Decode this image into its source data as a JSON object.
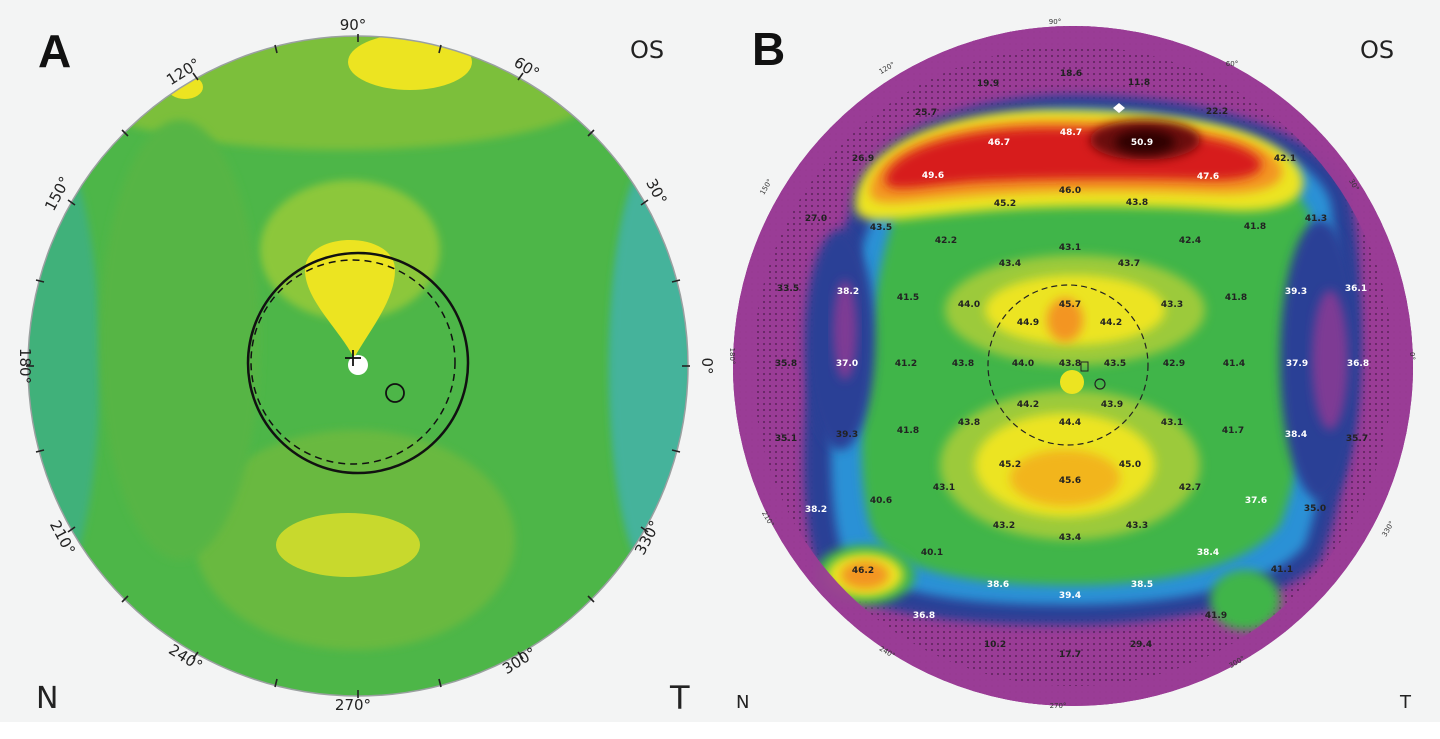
{
  "panels": [
    {
      "label": "A",
      "eye": "OS",
      "nasal": "N",
      "temporal": "T",
      "angles": [
        "90°",
        "60°",
        "30°",
        "0°",
        "330°",
        "300°",
        "270°",
        "240°",
        "210°",
        "180°",
        "150°",
        "120°"
      ]
    },
    {
      "label": "B",
      "eye": "OS",
      "nasal": "N",
      "temporal": "T",
      "angles": [
        "90°",
        "60°",
        "30°",
        "0°",
        "330°",
        "300°",
        "270°",
        "240°",
        "210°",
        "180°",
        "150°",
        "120°"
      ],
      "values": [
        "18.6",
        "11.8",
        "19.9",
        "22.2",
        "25.7",
        "48.7",
        "50.9",
        "46.7",
        "26.9",
        "49.6",
        "46.0",
        "47.6",
        "42.1",
        "45.2",
        "43.8",
        "27.0",
        "43.5",
        "41.8",
        "41.3",
        "42.2",
        "43.1",
        "42.4",
        "43.4",
        "43.7",
        "33.5",
        "38.2",
        "41.5",
        "44.0",
        "45.7",
        "43.3",
        "41.8",
        "39.3",
        "36.1",
        "44.9",
        "44.2",
        "35.8",
        "37.0",
        "41.2",
        "43.8",
        "44.0",
        "43.8",
        "43.5",
        "42.9",
        "41.4",
        "37.9",
        "36.8",
        "44.2",
        "43.9",
        "44.4",
        "35.1",
        "39.3",
        "41.8",
        "43.8",
        "43.1",
        "41.7",
        "38.4",
        "35.7",
        "45.2",
        "45.0",
        "45.6",
        "43.1",
        "42.7",
        "38.2",
        "40.6",
        "37.6",
        "35.0",
        "43.2",
        "43.3",
        "43.4",
        "40.1",
        "38.4",
        "46.2",
        "38.6",
        "39.4",
        "38.5",
        "41.1",
        "36.8",
        "41.9",
        "10.2",
        "17.7",
        "29.4"
      ]
    }
  ],
  "colors": {
    "background": "#f3f4f4",
    "map_a_base": "#4db648",
    "map_b_base": "#9a3c96",
    "hot": "#d71b1b",
    "warm_yellow": "#ece421",
    "cool_blue": "#2a3f96"
  }
}
